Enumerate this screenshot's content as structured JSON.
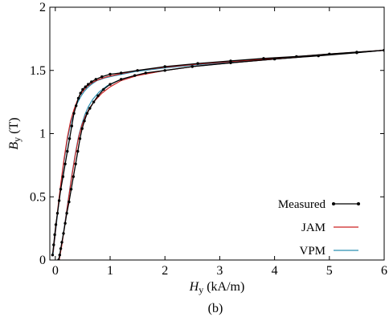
{
  "chart_data": {
    "type": "line",
    "caption": "(b)",
    "xlabel": {
      "symbol": "H",
      "subscript": "y",
      "unit": "(kA/m)"
    },
    "ylabel": {
      "symbol": "B",
      "subscript": "y",
      "unit": "(T)"
    },
    "xlim": [
      -0.1,
      6
    ],
    "ylim": [
      0,
      2
    ],
    "xticks": [
      0,
      1,
      2,
      3,
      4,
      5,
      6
    ],
    "xtick_labels": [
      "0",
      "1",
      "2",
      "3",
      "4",
      "5",
      "6"
    ],
    "yticks": [
      0,
      0.5,
      1,
      1.5,
      2
    ],
    "ytick_labels": [
      "0",
      "0.5",
      "1",
      "1.5",
      "2"
    ],
    "grid": false,
    "legend_position": "lower-right",
    "series": [
      {
        "name": "Measured",
        "color": "#000000",
        "marker": "dot",
        "branches": [
          {
            "x": [
              -0.05,
              -0.03,
              -0.01,
              0.01,
              0.04,
              0.07,
              0.1,
              0.14,
              0.18,
              0.22,
              0.26,
              0.3,
              0.34,
              0.38,
              0.42,
              0.46,
              0.5,
              0.55,
              0.6,
              0.66,
              0.74,
              0.85,
              1.0,
              1.2,
              1.5,
              2.0,
              2.6,
              3.2,
              3.8,
              4.4,
              5.0,
              5.5,
              6.0
            ],
            "y": [
              0.04,
              0.12,
              0.2,
              0.28,
              0.37,
              0.47,
              0.56,
              0.66,
              0.76,
              0.86,
              0.96,
              1.06,
              1.16,
              1.22,
              1.28,
              1.32,
              1.35,
              1.37,
              1.39,
              1.41,
              1.43,
              1.45,
              1.47,
              1.48,
              1.5,
              1.53,
              1.555,
              1.575,
              1.595,
              1.61,
              1.63,
              1.645,
              1.66
            ]
          },
          {
            "x": [
              0.06,
              0.08,
              0.1,
              0.12,
              0.15,
              0.18,
              0.21,
              0.25,
              0.29,
              0.33,
              0.37,
              0.41,
              0.45,
              0.49,
              0.53,
              0.58,
              0.63,
              0.7,
              0.78,
              0.88,
              1.0,
              1.2,
              1.45,
              1.65,
              2.0,
              2.5,
              3.2,
              4.0,
              4.8,
              5.5,
              6.0
            ],
            "y": [
              0.0,
              0.04,
              0.09,
              0.14,
              0.21,
              0.29,
              0.37,
              0.46,
              0.56,
              0.66,
              0.76,
              0.86,
              0.96,
              1.04,
              1.1,
              1.16,
              1.2,
              1.25,
              1.3,
              1.35,
              1.39,
              1.43,
              1.46,
              1.48,
              1.5,
              1.53,
              1.56,
              1.59,
              1.615,
              1.64,
              1.66
            ]
          }
        ]
      },
      {
        "name": "JAM",
        "color": "#cc2222",
        "marker": "none",
        "branches": [
          {
            "x": [
              -0.04,
              0.0,
              0.05,
              0.1,
              0.16,
              0.22,
              0.28,
              0.34,
              0.4,
              0.46,
              0.53,
              0.6,
              0.7,
              0.8,
              0.95,
              1.15,
              1.5,
              2.0,
              2.6,
              3.2,
              4.0,
              5.0,
              6.0
            ],
            "y": [
              0.06,
              0.22,
              0.42,
              0.6,
              0.8,
              0.97,
              1.1,
              1.19,
              1.26,
              1.31,
              1.35,
              1.38,
              1.41,
              1.43,
              1.45,
              1.47,
              1.5,
              1.525,
              1.55,
              1.57,
              1.595,
              1.63,
              1.66
            ]
          },
          {
            "x": [
              0.07,
              0.12,
              0.18,
              0.24,
              0.3,
              0.36,
              0.42,
              0.48,
              0.55,
              0.62,
              0.72,
              0.85,
              1.0,
              1.2,
              1.5,
              2.0,
              2.6,
              3.2,
              4.0,
              5.0,
              6.0
            ],
            "y": [
              0.0,
              0.12,
              0.3,
              0.48,
              0.66,
              0.82,
              0.96,
              1.06,
              1.14,
              1.2,
              1.26,
              1.32,
              1.37,
              1.42,
              1.46,
              1.5,
              1.535,
              1.56,
              1.59,
              1.625,
              1.66
            ]
          }
        ]
      },
      {
        "name": "VPM",
        "color": "#2a8fb0",
        "marker": "none",
        "branches": [
          {
            "x": [
              -0.04,
              0.0,
              0.05,
              0.1,
              0.16,
              0.22,
              0.28,
              0.34,
              0.4,
              0.46,
              0.52,
              0.58,
              0.66,
              0.76,
              0.9,
              1.1,
              1.45,
              2.0,
              2.6,
              3.2,
              4.0,
              5.0,
              6.0
            ],
            "y": [
              0.05,
              0.2,
              0.4,
              0.58,
              0.78,
              0.95,
              1.08,
              1.17,
              1.24,
              1.29,
              1.33,
              1.36,
              1.39,
              1.42,
              1.44,
              1.46,
              1.49,
              1.52,
              1.545,
              1.565,
              1.59,
              1.625,
              1.66
            ]
          },
          {
            "x": [
              0.07,
              0.12,
              0.18,
              0.24,
              0.3,
              0.36,
              0.42,
              0.48,
              0.54,
              0.6,
              0.68,
              0.8,
              0.95,
              1.15,
              1.45,
              2.0,
              2.6,
              3.2,
              4.0,
              5.0,
              6.0
            ],
            "y": [
              0.0,
              0.13,
              0.31,
              0.49,
              0.67,
              0.83,
              0.97,
              1.07,
              1.15,
              1.21,
              1.27,
              1.33,
              1.38,
              1.42,
              1.46,
              1.5,
              1.535,
              1.56,
              1.59,
              1.625,
              1.66
            ]
          }
        ]
      }
    ]
  }
}
